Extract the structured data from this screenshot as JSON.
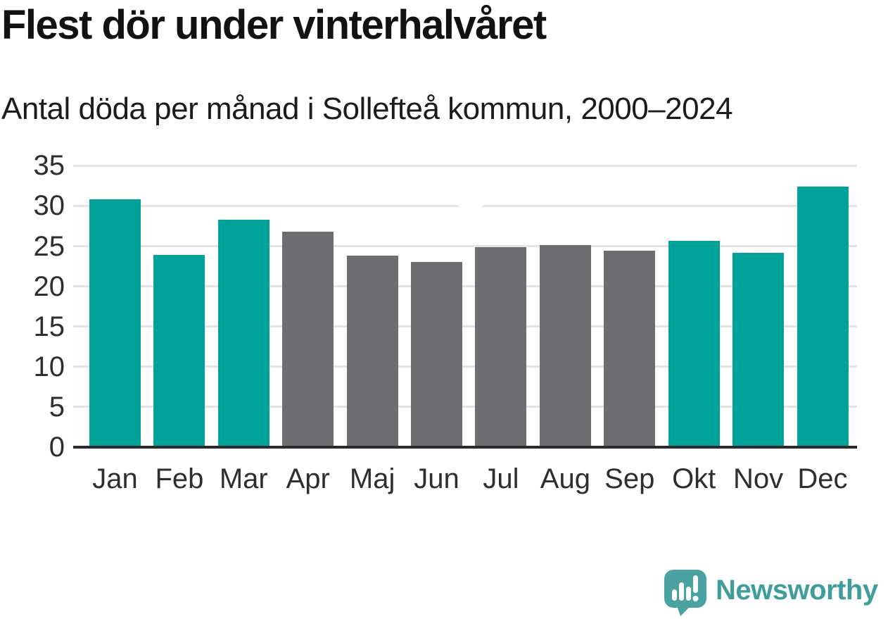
{
  "chart_data": {
    "type": "bar",
    "title": "Flest dör under vinterhalvåret",
    "subtitle": "Antal döda per månad i Sollefteå kommun, 2000–2024",
    "categories": [
      "Jan",
      "Feb",
      "Mar",
      "Apr",
      "Maj",
      "Jun",
      "Jul",
      "Aug",
      "Sep",
      "Okt",
      "Nov",
      "Dec"
    ],
    "values": [
      30.8,
      23.9,
      28.3,
      26.8,
      23.8,
      23.0,
      24.9,
      25.1,
      24.4,
      25.7,
      24.2,
      32.4
    ],
    "bar_colors": [
      "#00a39a",
      "#00a39a",
      "#00a39a",
      "#6d6d72",
      "#6d6d72",
      "#6d6d72",
      "#6d6d72",
      "#6d6d72",
      "#6d6d72",
      "#00a39a",
      "#00a39a",
      "#00a39a"
    ],
    "highlight_color": "#00a39a",
    "neutral_color": "#6d6d72",
    "xlabel": "",
    "ylabel": "",
    "ylim": [
      0,
      35
    ],
    "yticks": [
      0,
      5,
      10,
      15,
      20,
      25,
      30,
      35
    ],
    "grid": "horizontal",
    "legend": "none"
  },
  "footer": {
    "brand": "Newsworthy",
    "brand_color": "#3f9e9b",
    "logo_color": "#4aa3a1",
    "logo_icon": "newsworthy-logo-icon"
  }
}
